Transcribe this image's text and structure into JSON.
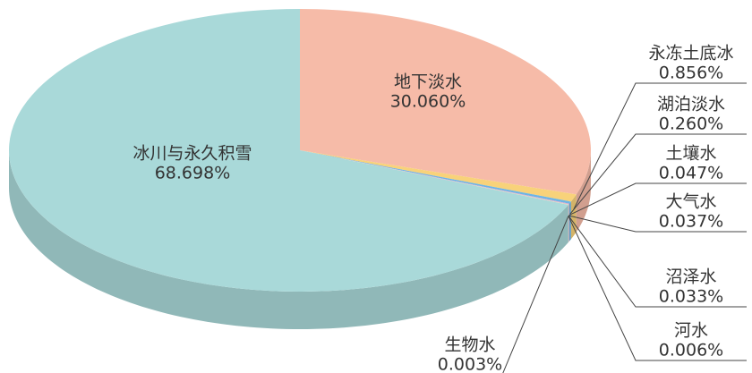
{
  "chart_data": {
    "type": "pie",
    "categories": [
      "地下淡水",
      "永冻土底冰",
      "湖泊淡水",
      "土壤水",
      "大气水",
      "沼泽水",
      "河水",
      "生物水",
      "冰川与永久积雪"
    ],
    "values": [
      30.06,
      0.856,
      0.26,
      0.047,
      0.037,
      0.033,
      0.006,
      0.003,
      68.698
    ],
    "value_labels": [
      "30.060%",
      "0.856%",
      "0.260%",
      "0.047%",
      "0.037%",
      "0.033%",
      "0.006%",
      "0.003%",
      "68.698%"
    ],
    "colors": [
      "#f6bba8",
      "#f8d27a",
      "#6db5e6",
      "#f3a6c8",
      "#9b8fd6",
      "#f4e7a0",
      "#d98fa8",
      "#c9a0dc",
      "#a9d9d9"
    ]
  }
}
